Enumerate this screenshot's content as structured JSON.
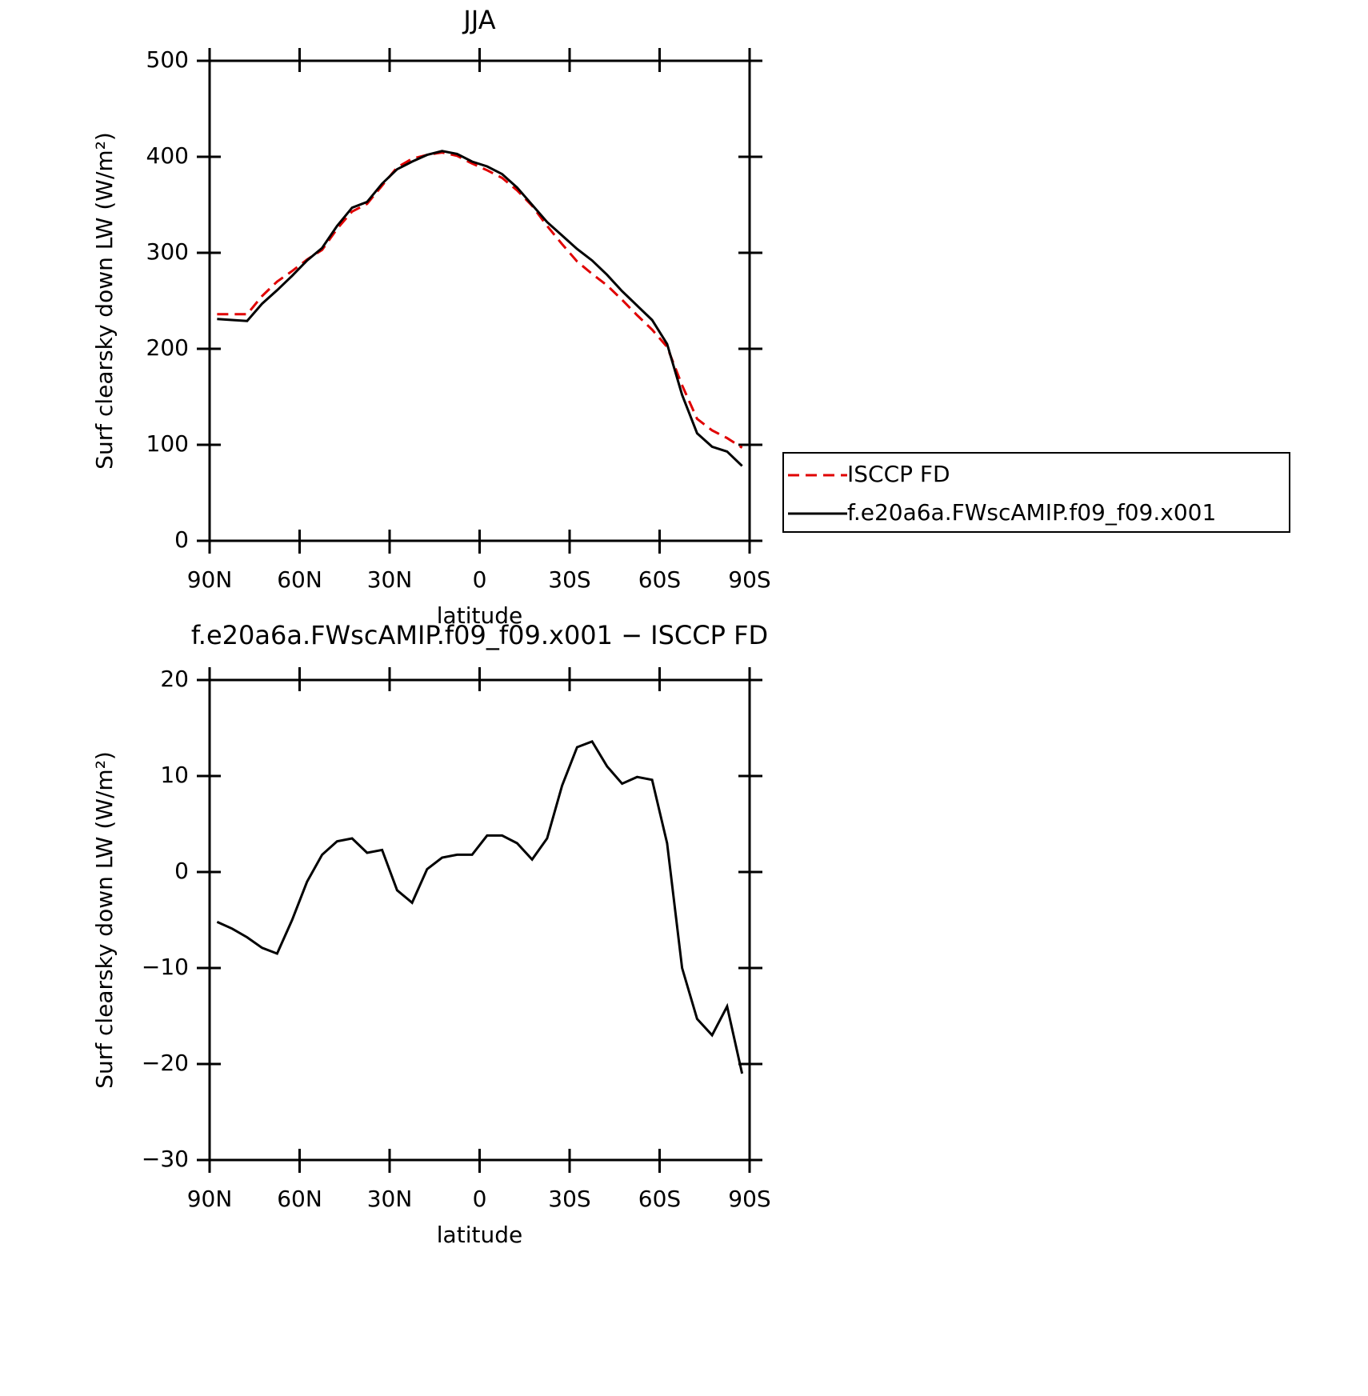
{
  "chart_data": [
    {
      "type": "line",
      "title": "JJA",
      "x_label": "latitude",
      "y_label": "Surf clearsky down LW (W/m²)",
      "x": [
        87.5,
        82.5,
        77.5,
        72.5,
        67.5,
        62.5,
        57.5,
        52.5,
        47.5,
        42.5,
        37.5,
        32.5,
        27.5,
        22.5,
        17.5,
        12.5,
        7.5,
        2.5,
        -2.5,
        -7.5,
        -12.5,
        -17.5,
        -22.5,
        -27.5,
        -32.5,
        -37.5,
        -42.5,
        -47.5,
        -52.5,
        -57.5,
        -62.5,
        -67.5,
        -72.5,
        -77.5,
        -82.5,
        -87.5
      ],
      "series": [
        {
          "name": "ISCCP FD",
          "color": "#e00000",
          "style": "dashed",
          "values": [
            236,
            236,
            236,
            255,
            270,
            281,
            293,
            303,
            325,
            343,
            351,
            370,
            389,
            398,
            402,
            404.5,
            401,
            393,
            386,
            378,
            365,
            349,
            328,
            309,
            291,
            278,
            266,
            251,
            235,
            220,
            202,
            162,
            127,
            115,
            107,
            97
          ]
        },
        {
          "name": "f.e20a6a.FWscAMIP.f09_f09.x001",
          "color": "#000000",
          "style": "solid",
          "values": [
            231,
            230,
            229,
            247,
            261,
            276,
            292,
            305,
            328,
            347,
            353,
            372,
            387,
            395,
            402,
            406,
            403,
            395,
            390,
            382,
            368,
            350,
            332,
            318,
            304,
            292,
            277,
            260,
            245,
            230,
            205,
            152,
            112,
            98,
            93,
            78
          ]
        }
      ],
      "xlim": [
        90,
        -90
      ],
      "xticks": [
        {
          "value": 90,
          "label": "90N"
        },
        {
          "value": 60,
          "label": "60N"
        },
        {
          "value": 30,
          "label": "30N"
        },
        0,
        {
          "value": -30,
          "label": "30S"
        },
        {
          "value": -60,
          "label": "60S"
        },
        {
          "value": -90,
          "label": "90S"
        }
      ],
      "ylim": [
        0,
        500
      ],
      "yticks": [
        0,
        100,
        200,
        300,
        400,
        500
      ],
      "legend": "outside-right"
    },
    {
      "type": "line",
      "title": "f.e20a6a.FWscAMIP.f09_f09.x001 − ISCCP FD",
      "x_label": "latitude",
      "y_label": "Surf clearsky down LW (W/m²)",
      "x": [
        87.5,
        82.5,
        77.5,
        72.5,
        67.5,
        62.5,
        57.5,
        52.5,
        47.5,
        42.5,
        37.5,
        32.5,
        27.5,
        22.5,
        17.5,
        12.5,
        7.5,
        2.5,
        -2.5,
        -7.5,
        -12.5,
        -17.5,
        -22.5,
        -27.5,
        -32.5,
        -37.5,
        -42.5,
        -47.5,
        -52.5,
        -57.5,
        -62.5,
        -67.5,
        -72.5,
        -77.5,
        -82.5,
        -87.5
      ],
      "series": [
        {
          "color": "#000000",
          "style": "solid",
          "values": [
            -5.2,
            -5.9,
            -6.8,
            -7.9,
            -8.5,
            -5,
            -1,
            1.8,
            3.2,
            3.5,
            2,
            2.3,
            -1.9,
            -3.2,
            0.3,
            1.5,
            1.8,
            1.8,
            3.8,
            3.8,
            3,
            1.3,
            3.5,
            9,
            13,
            13.6,
            11,
            9.2,
            9.9,
            9.6,
            3,
            -10,
            -15.3,
            -17,
            -14,
            -21
          ]
        }
      ],
      "xlim": [
        90,
        -90
      ],
      "xticks": [
        {
          "value": 90,
          "label": "90N"
        },
        {
          "value": 60,
          "label": "60N"
        },
        {
          "value": 30,
          "label": "30N"
        },
        0,
        {
          "value": -30,
          "label": "30S"
        },
        {
          "value": -60,
          "label": "60S"
        },
        {
          "value": -90,
          "label": "90S"
        }
      ],
      "ylim": [
        -30,
        20
      ],
      "yticks": [
        {
          "value": -30,
          "label": "−30"
        },
        {
          "value": -20,
          "label": "−20"
        },
        {
          "value": -10,
          "label": "−10"
        },
        0,
        10,
        20
      ]
    }
  ]
}
